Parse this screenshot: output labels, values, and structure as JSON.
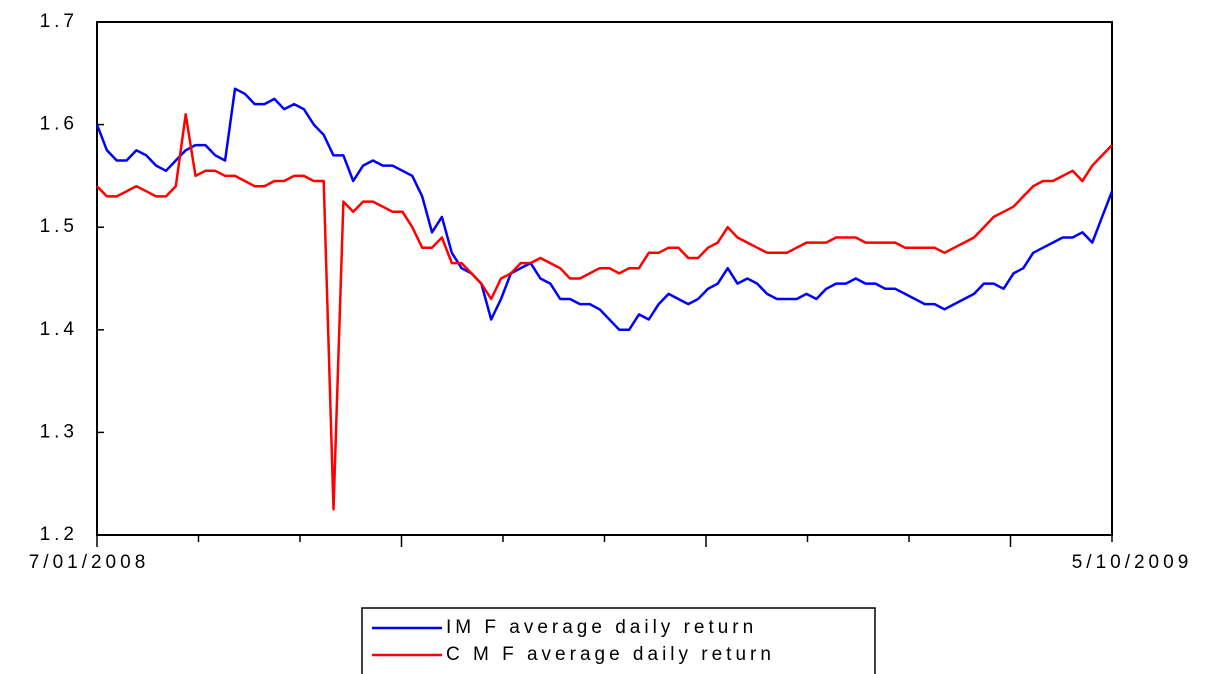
{
  "chart_data": {
    "type": "line",
    "categories": [
      "7/01/2008",
      null,
      null,
      null,
      null,
      null,
      null,
      null,
      null,
      null,
      null,
      null,
      null,
      null,
      null,
      null,
      null,
      null,
      null,
      null,
      null,
      null,
      null,
      null,
      null,
      null,
      null,
      null,
      null,
      null,
      null,
      null,
      null,
      null,
      null,
      null,
      null,
      null,
      null,
      null,
      null,
      null,
      null,
      null,
      null,
      null,
      null,
      null,
      null,
      null,
      null,
      null,
      null,
      null,
      null,
      null,
      null,
      null,
      null,
      null,
      null,
      null,
      null,
      null,
      null,
      null,
      null,
      null,
      null,
      null,
      null,
      null,
      null,
      null,
      null,
      null,
      null,
      null,
      null,
      null,
      null,
      null,
      null,
      null,
      null,
      null,
      null,
      null,
      null,
      null,
      null,
      null,
      null,
      null,
      null,
      null,
      null,
      null,
      null,
      null,
      null,
      null,
      null,
      "5/10/2009"
    ],
    "series": [
      {
        "name": "IM F average daily return",
        "color": "#0000ff",
        "values": [
          1.6,
          1.575,
          1.565,
          1.565,
          1.575,
          1.57,
          1.56,
          1.555,
          1.565,
          1.575,
          1.58,
          1.58,
          1.57,
          1.565,
          1.635,
          1.63,
          1.62,
          1.62,
          1.625,
          1.615,
          1.62,
          1.615,
          1.6,
          1.59,
          1.57,
          1.57,
          1.545,
          1.56,
          1.565,
          1.56,
          1.56,
          1.555,
          1.55,
          1.53,
          1.495,
          1.51,
          1.475,
          1.46,
          1.455,
          1.445,
          1.41,
          1.43,
          1.455,
          1.46,
          1.465,
          1.45,
          1.445,
          1.43,
          1.43,
          1.425,
          1.425,
          1.42,
          1.41,
          1.4,
          1.4,
          1.415,
          1.41,
          1.425,
          1.435,
          1.43,
          1.425,
          1.43,
          1.44,
          1.445,
          1.46,
          1.445,
          1.45,
          1.445,
          1.435,
          1.43,
          1.43,
          1.43,
          1.435,
          1.43,
          1.44,
          1.445,
          1.445,
          1.45,
          1.445,
          1.445,
          1.44,
          1.44,
          1.435,
          1.43,
          1.425,
          1.425,
          1.42,
          1.425,
          1.43,
          1.435,
          1.445,
          1.445,
          1.44,
          1.455,
          1.46,
          1.475,
          1.48,
          1.485,
          1.49,
          1.49,
          1.495,
          1.485,
          1.51,
          1.535
        ]
      },
      {
        "name": "C M F average daily return",
        "color": "#ff0000",
        "values": [
          1.54,
          1.53,
          1.53,
          1.535,
          1.54,
          1.535,
          1.53,
          1.53,
          1.54,
          1.61,
          1.55,
          1.555,
          1.555,
          1.55,
          1.55,
          1.545,
          1.54,
          1.54,
          1.545,
          1.545,
          1.55,
          1.55,
          1.545,
          1.545,
          1.225,
          1.525,
          1.515,
          1.525,
          1.525,
          1.52,
          1.515,
          1.515,
          1.5,
          1.48,
          1.48,
          1.49,
          1.465,
          1.465,
          1.455,
          1.445,
          1.43,
          1.45,
          1.455,
          1.465,
          1.465,
          1.47,
          1.465,
          1.46,
          1.45,
          1.45,
          1.455,
          1.46,
          1.46,
          1.455,
          1.46,
          1.46,
          1.475,
          1.475,
          1.48,
          1.48,
          1.47,
          1.47,
          1.48,
          1.485,
          1.5,
          1.49,
          1.485,
          1.48,
          1.475,
          1.475,
          1.475,
          1.48,
          1.485,
          1.485,
          1.485,
          1.49,
          1.49,
          1.49,
          1.485,
          1.485,
          1.485,
          1.485,
          1.48,
          1.48,
          1.48,
          1.48,
          1.475,
          1.48,
          1.485,
          1.49,
          1.5,
          1.51,
          1.515,
          1.52,
          1.53,
          1.54,
          1.545,
          1.545,
          1.55,
          1.555,
          1.545,
          1.56,
          1.57,
          1.58
        ]
      }
    ],
    "ylim": [
      1.2,
      1.7
    ],
    "yticks": [
      1.2,
      1.3,
      1.4,
      1.5,
      1.6,
      1.7
    ],
    "grid": false,
    "legend": "bottom"
  }
}
